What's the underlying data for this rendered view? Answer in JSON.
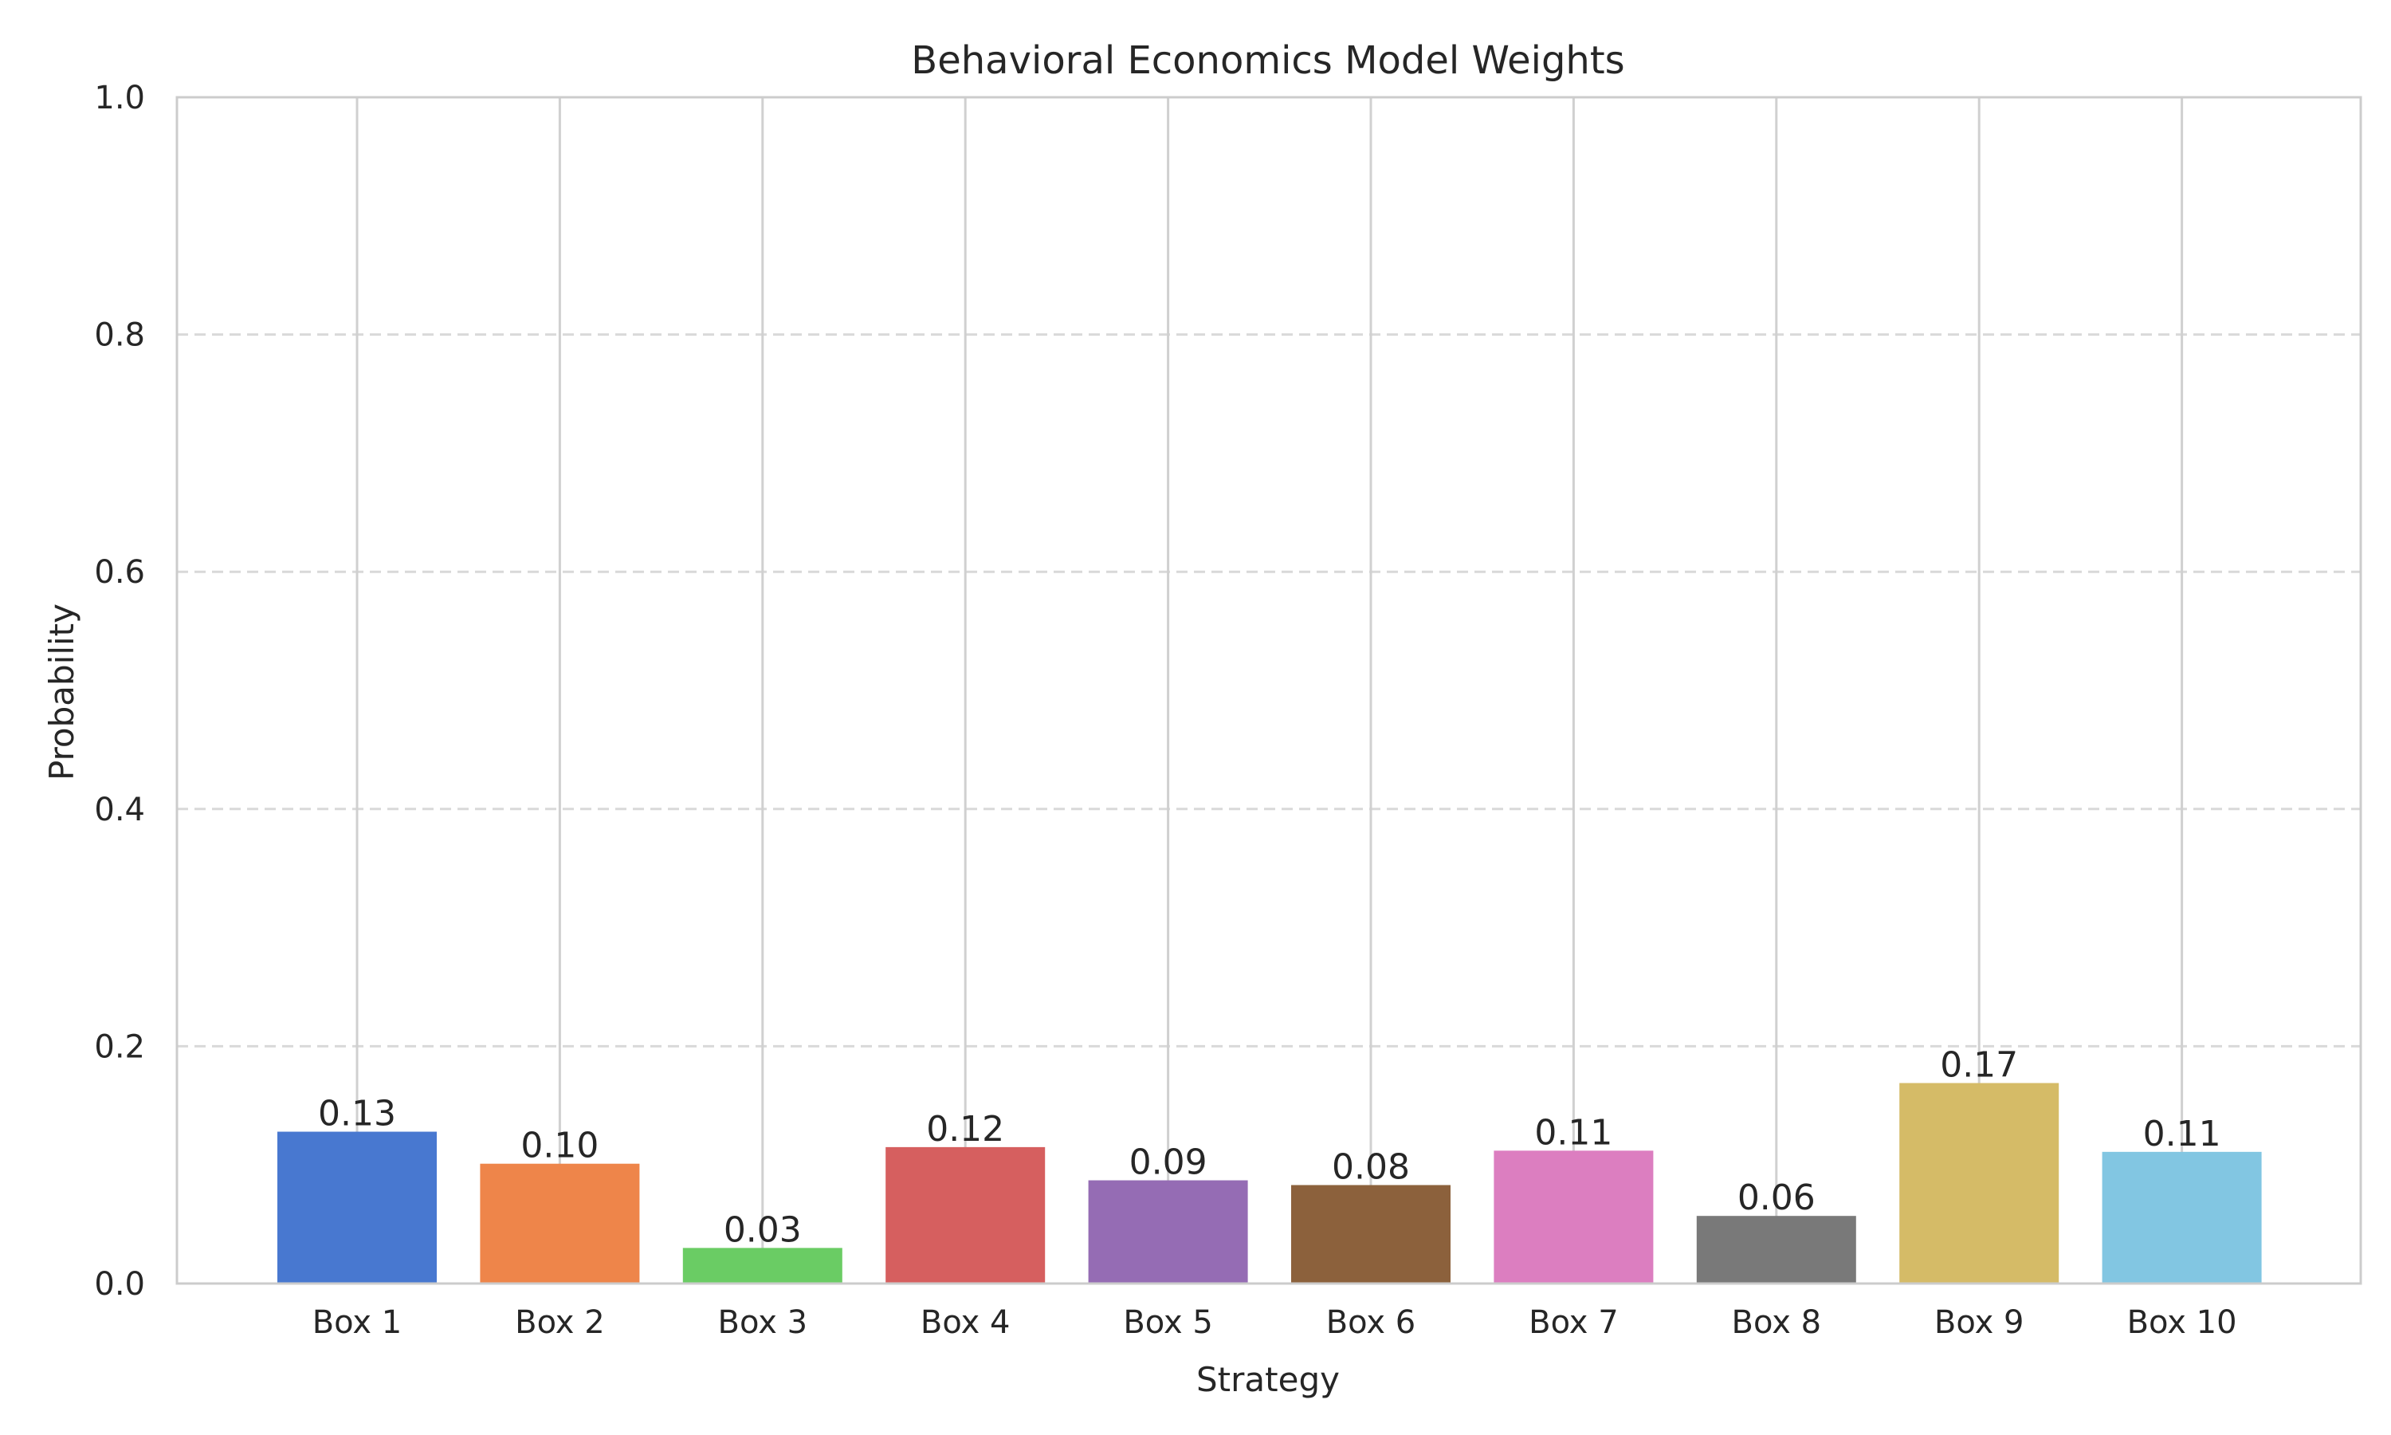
{
  "chart_data": {
    "type": "bar",
    "title": "Behavioral Economics Model Weights",
    "xlabel": "Strategy",
    "ylabel": "Probability",
    "categories": [
      "Box 1",
      "Box 2",
      "Box 3",
      "Box 4",
      "Box 5",
      "Box 6",
      "Box 7",
      "Box 8",
      "Box 9",
      "Box 10"
    ],
    "values": [
      0.128,
      0.101,
      0.03,
      0.115,
      0.087,
      0.083,
      0.112,
      0.057,
      0.169,
      0.111
    ],
    "value_labels": [
      "0.13",
      "0.10",
      "0.03",
      "0.12",
      "0.09",
      "0.08",
      "0.11",
      "0.06",
      "0.17",
      "0.11"
    ],
    "colors": [
      "#4878d0",
      "#ee854a",
      "#6acc64",
      "#d65f5f",
      "#956cb4",
      "#8c613c",
      "#dc7ec0",
      "#797979",
      "#d5bb67",
      "#82c6e2"
    ],
    "ylim": [
      0,
      1.0
    ],
    "yticks": [
      "0.0",
      "0.2",
      "0.4",
      "0.6",
      "0.8",
      "1.0"
    ],
    "grid": true,
    "grid_style_y": "dashed",
    "grid_style_x": "solid"
  }
}
